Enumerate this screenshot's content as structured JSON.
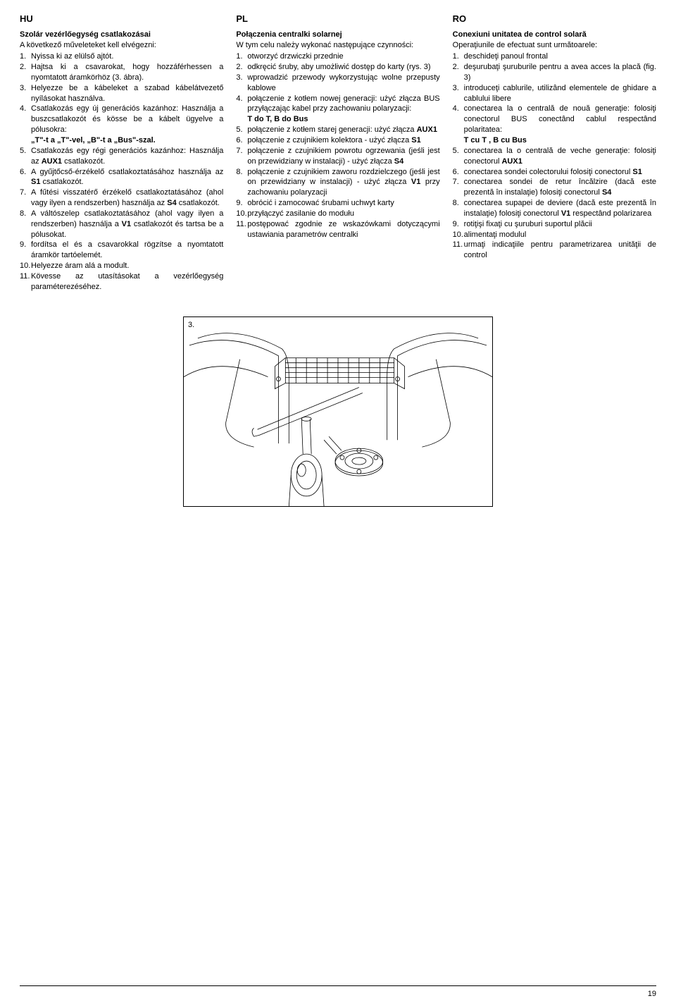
{
  "page_number": "19",
  "figure_label": "3.",
  "columns": [
    {
      "lang": "HU",
      "title": "Szolár vezérlőegység csatlakozásai",
      "intro": "A következő műveleteket kell elvégezni:",
      "items": [
        {
          "n": "1.",
          "t": "Nyissa ki az elülső ajtót.",
          "align": "left"
        },
        {
          "n": "2.",
          "t": "Hajtsa ki a csavarokat, hogy hozzáférhessen a nyomtatott áramkörhöz (3. ábra)."
        },
        {
          "n": "3.",
          "t": "Helyezze be a kábeleket a szabad kábelátvezető nyílásokat használva."
        },
        {
          "n": "4.",
          "t": "Csatlakozás egy új generációs kazánhoz: Használja a buszcsatlakozót és kösse be a kábelt ügyelve a pólusokra:",
          "sub": "„T\"-t a „T\"-vel, „B\"-t a „Bus\"-szal."
        },
        {
          "n": "5.",
          "t": "Csatlakozás egy régi generációs kazánhoz: Használja az <b>AUX1</b> csatlakozót.",
          "align": "left"
        },
        {
          "n": "6.",
          "t": "A gyűjtőcső-érzékelő csatlakoztatásához használja az <b>S1</b> csatlakozót."
        },
        {
          "n": "7.",
          "t": "A fűtési visszatérő érzékelő csatlakoztatásához (ahol vagy ilyen a rendszerben) használja az <b>S4</b> csatlakozót."
        },
        {
          "n": "8.",
          "t": "A váltószelep csatlakoztatásához (ahol vagy ilyen a rendszerben) használja a <b>V1</b> csatlakozót és tartsa be a pólusokat."
        },
        {
          "n": "9.",
          "t": "fordítsa el és a csavarokkal rögzítse a nyomtatott áramkör tartóelemét."
        },
        {
          "n": "10.",
          "t": "Helyezze áram alá a modult.",
          "align": "left"
        },
        {
          "n": "11.",
          "t": "Kövesse az utasításokat a vezérlőegység paraméterezéséhez."
        }
      ]
    },
    {
      "lang": "PL",
      "title": "Połączenia centralki solarnej",
      "intro": "W tym celu należy wykonać następujące czynności:",
      "items": [
        {
          "n": "1.",
          "t": "otworzyć drzwiczki przednie",
          "align": "left"
        },
        {
          "n": "2.",
          "t": "odkręcić śruby, aby umożliwić dostęp do karty (rys. 3)"
        },
        {
          "n": "3.",
          "t": "wprowadzić przewody wykorzystując wolne przepusty kablowe"
        },
        {
          "n": "4.",
          "t": "połączenie z kotłem nowej generacji: użyć złącza BUS przyłączając kabel przy zachowaniu polaryzacji:",
          "sub": "T do T, B do Bus",
          "align": "left"
        },
        {
          "n": "5.",
          "t": "połączenie z kotłem starej generacji: użyć złącza <b>AUX1</b>",
          "align": "left"
        },
        {
          "n": "6.",
          "t": "połączenie z czujnikiem kolektora - użyć złącza <b>S1</b>"
        },
        {
          "n": "7.",
          "t": "połączenie z czujnikiem powrotu ogrzewania (jeśli jest on przewidziany w instalacji) - użyć złącza <b>S4</b>"
        },
        {
          "n": "8.",
          "t": "połączenie z czujnikiem zaworu rozdzielczego (jeśli jest on przewidziany w instalacji) - użyć złącza <b>V1</b> przy zachowaniu polaryzacji"
        },
        {
          "n": "9.",
          "t": "obrócić i zamocować śrubami uchwyt karty",
          "align": "left"
        },
        {
          "n": "10.",
          "t": "przyłączyć zasilanie do modułu",
          "align": "left"
        },
        {
          "n": "11.",
          "t": "postępować zgodnie ze wskazówkami dotyczącymi ustawiania parametrów centralki"
        }
      ]
    },
    {
      "lang": "RO",
      "title": "Conexiuni unitatea de control solară",
      "intro": "Operaţiunile de efectuat sunt următoarele:",
      "items": [
        {
          "n": "1.",
          "t": "deschideţi panoul frontal",
          "align": "left"
        },
        {
          "n": "2.",
          "t": "deşurubaţi şuruburile pentru a avea acces la placă (fig. 3)"
        },
        {
          "n": "3.",
          "t": "introduceţi cablurile, utilizând elementele de ghidare a cablului libere"
        },
        {
          "n": "4.",
          "t": "conectarea la o centrală de nouă generaţie: folosiţi conectorul BUS conectând cablul respectând polaritatea:",
          "sub": "T cu T , B cu Bus",
          "align": "left"
        },
        {
          "n": "5.",
          "t": "conectarea la o centrală de veche generaţie: folosiţi conectorul <b>AUX1</b>",
          "align": "left"
        },
        {
          "n": "6.",
          "t": "conectarea sondei colectorului folosiţi conectorul <b>S1</b>"
        },
        {
          "n": "7.",
          "t": "conectarea sondei de retur încălzire (dacă este prezentă în instalaţie) folosiţi conectorul <b>S4</b>"
        },
        {
          "n": "8.",
          "t": "conectarea supapei de deviere (dacă este prezentă în instalaţie) folosiţi conectorul <b>V1</b> respectând polarizarea"
        },
        {
          "n": "9.",
          "t": "rotiţişi fixaţi cu şuruburi suportul plăcii",
          "align": "left"
        },
        {
          "n": "10.",
          "t": "alimentaţi modulul",
          "align": "left"
        },
        {
          "n": "11.",
          "t": "urmaţi indicaţiile pentru parametrizarea unităţii de control"
        }
      ]
    }
  ]
}
